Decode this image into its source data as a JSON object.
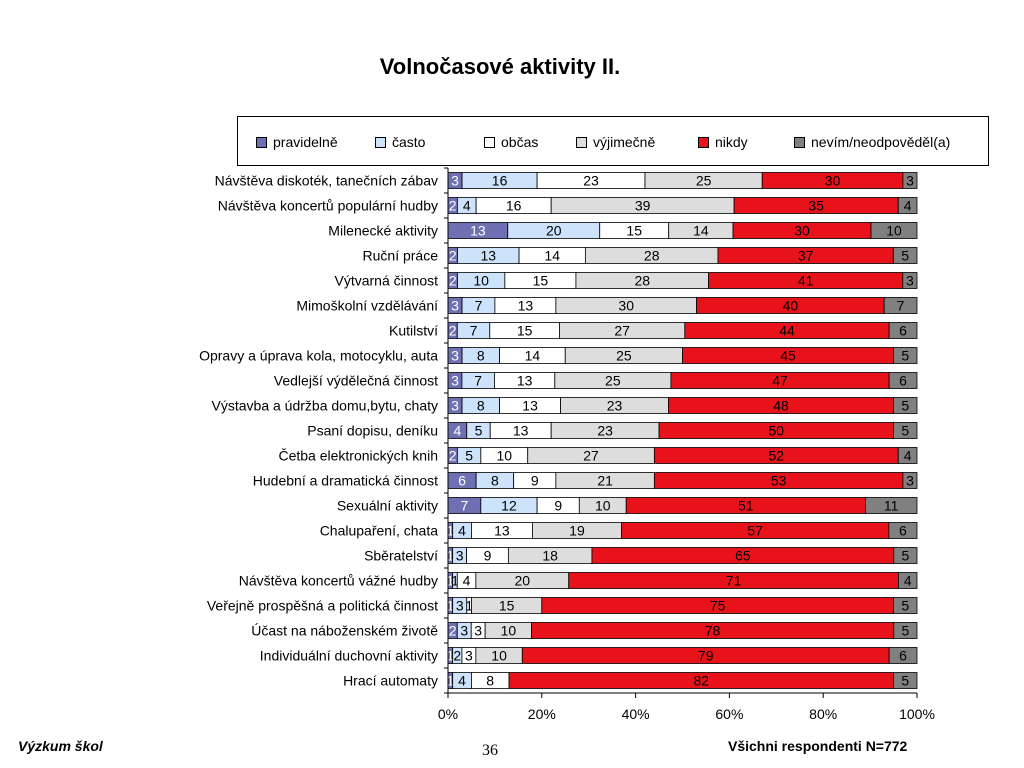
{
  "title": "Volnočasové aktivity II.",
  "footer": {
    "left": "Výzkum škol",
    "page_number": "36",
    "right": "Všichni respondenti N=772"
  },
  "legend": [
    {
      "name": "pravidelně",
      "color": "#6f6fb3"
    },
    {
      "name": "často",
      "color": "#cde3fb"
    },
    {
      "name": "občas",
      "color": "#ffffff"
    },
    {
      "name": "výjimečně",
      "color": "#dddddd"
    },
    {
      "name": "nikdy",
      "color": "#e8121b"
    },
    {
      "name": "nevím/neodpověděl(a)",
      "color": "#808080"
    }
  ],
  "chart_data": {
    "type": "bar",
    "orientation": "horizontal",
    "stacked": "percent",
    "title": "Volnočasové aktivity II.",
    "legend_position": "top",
    "xlim": [
      0,
      100
    ],
    "x_ticks": [
      "0%",
      "20%",
      "40%",
      "60%",
      "80%",
      "100%"
    ],
    "categories": [
      "Návštěva diskoték, tanečních zábav",
      "Návštěva koncertů populární hudby",
      "Milenecké aktivity",
      "Ruční práce",
      "Výtvarná činnost",
      "Mimoškolní vzdělávání",
      "Kutilství",
      "Opravy a úprava kola, motocyklu, auta",
      "Vedlejší výdělečná činnost",
      "Výstavba a údržba domu,bytu, chaty",
      "Psaní dopisu, deníku",
      "Četba elektronických knih",
      "Hudební a dramatická činnost",
      "Sexuální aktivity",
      "Chalupaření, chata",
      "Sběratelství",
      "Návštěva koncertů vážné hudby",
      "Veřejně prospěšná a politická činnost",
      "Účast na náboženském životě",
      "Individuální duchovní aktivity",
      "Hrací automaty"
    ],
    "series": [
      {
        "name": "pravidelně",
        "values": [
          3,
          2,
          13,
          2,
          2,
          3,
          2,
          3,
          3,
          3,
          4,
          2,
          6,
          7,
          1,
          1,
          1,
          1,
          2,
          1,
          1
        ]
      },
      {
        "name": "často",
        "values": [
          16,
          4,
          20,
          13,
          10,
          7,
          7,
          8,
          7,
          8,
          5,
          5,
          8,
          12,
          4,
          3,
          1,
          3,
          3,
          2,
          4
        ]
      },
      {
        "name": "občas",
        "values": [
          23,
          16,
          15,
          14,
          15,
          13,
          15,
          14,
          13,
          13,
          13,
          10,
          9,
          9,
          13,
          9,
          4,
          1,
          3,
          3,
          8
        ]
      },
      {
        "name": "výjimečně",
        "values": [
          25,
          39,
          14,
          28,
          28,
          30,
          27,
          25,
          25,
          23,
          23,
          27,
          21,
          10,
          19,
          18,
          20,
          15,
          10,
          10,
          0
        ]
      },
      {
        "name": "nikdy",
        "values": [
          30,
          35,
          30,
          37,
          41,
          40,
          44,
          45,
          47,
          48,
          50,
          52,
          53,
          51,
          57,
          65,
          71,
          75,
          78,
          79,
          82
        ]
      },
      {
        "name": "nevím/neodpověděl(a)",
        "values": [
          3,
          4,
          10,
          5,
          3,
          7,
          6,
          5,
          6,
          5,
          5,
          4,
          3,
          11,
          6,
          5,
          4,
          5,
          5,
          6,
          5
        ]
      }
    ]
  }
}
